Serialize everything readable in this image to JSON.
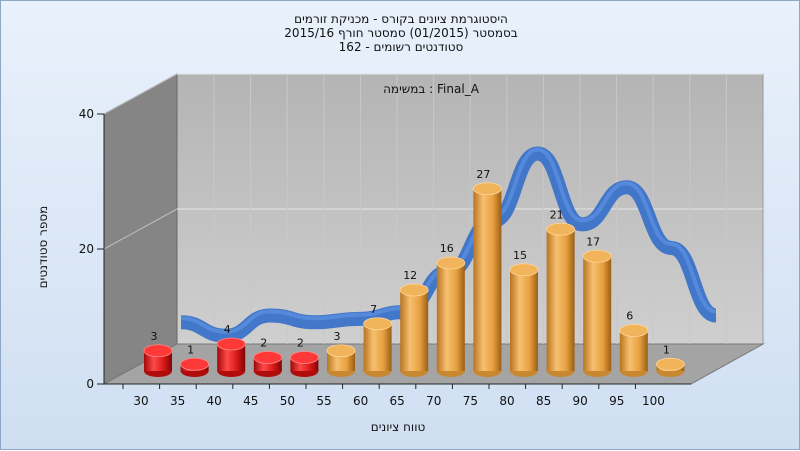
{
  "chart_data": {
    "type": "bar",
    "title": [
      "היסטוגרמת ציונים בקורס - מכניקת זורמים",
      "בסמסטר (01/2015) סמסטר חורף 2015/16",
      "162 - סטודנטים רשומים"
    ],
    "subtitle": "במשימה : Final_A",
    "xlabel": "טווח ציונים",
    "ylabel": "מספר סטודנטים",
    "categories": [
      "30",
      "35",
      "40",
      "45",
      "50",
      "55",
      "60",
      "65",
      "70",
      "75",
      "80",
      "85",
      "90",
      "95",
      "100"
    ],
    "values": [
      3,
      1,
      4,
      2,
      2,
      3,
      7,
      12,
      16,
      27,
      15,
      21,
      17,
      6,
      1
    ],
    "bar_colors": [
      "#d81818",
      "#d81818",
      "#d81818",
      "#d81818",
      "#d81818",
      "#e8a040",
      "#e8a040",
      "#e8a040",
      "#e8a040",
      "#e8a040",
      "#e8a040",
      "#e8a040",
      "#e8a040",
      "#e8a040",
      "#e8a040"
    ],
    "curve_values": [
      5,
      3,
      6,
      5,
      5.5,
      6.5,
      12.5,
      20,
      30,
      19.5,
      25,
      16,
      6
    ],
    "curve_color": "#3a72c8",
    "yticks": [
      0,
      20,
      40
    ],
    "ylim": [
      0,
      40
    ],
    "grid": true
  }
}
